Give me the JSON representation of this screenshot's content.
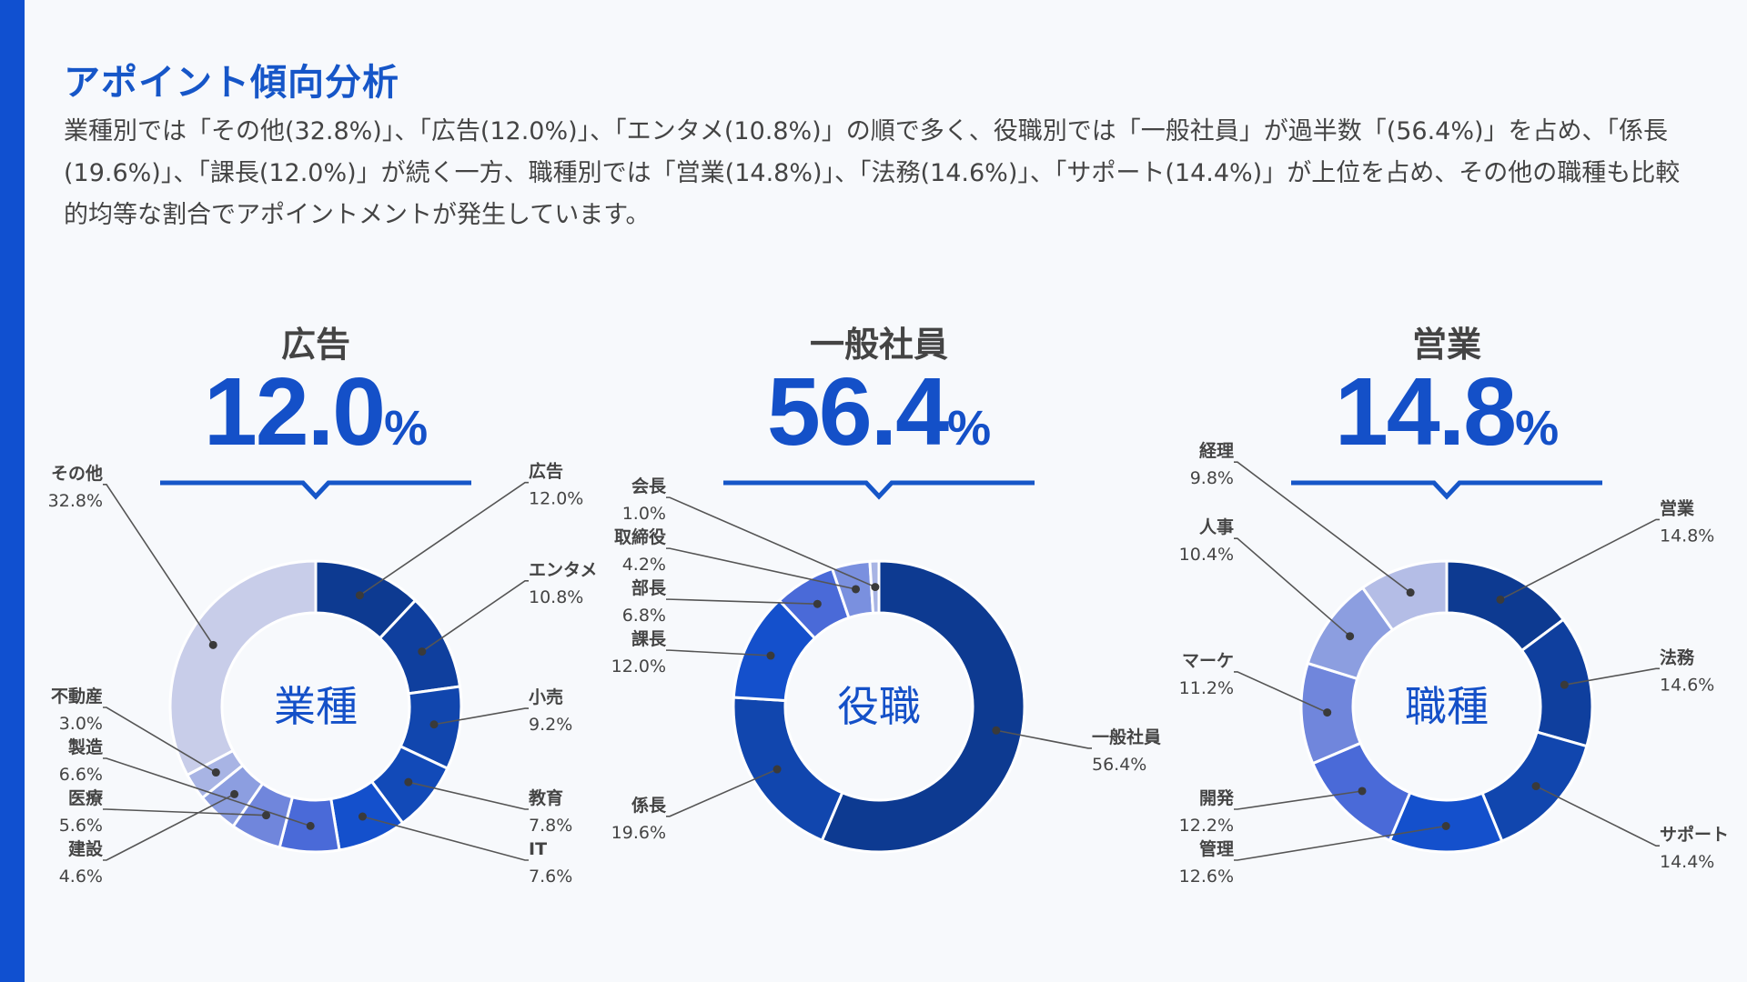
{
  "page": {
    "title": "アポイント傾向分析",
    "description": "業種別では「その他(32.8%)」、「広告(12.0%)」、「エンタメ(10.8%)」の順で多く、役職別では「一般社員」が過半数「(56.4%)」を占め、「係長(19.6%)」、「課長(12.0%)」が続く一方、職種別では「営業(14.8%)」、「法務(14.6%)」、「サポート(14.4%)」が上位を占め、その他の職種も比較的均等な割合でアポイントメントが発生しています。"
  },
  "colors": {
    "accent": "#1050d0",
    "title": "#1656c8",
    "highlight": "#1450c8"
  },
  "highlights": [
    {
      "label": "広告",
      "value": "12.0",
      "unit": "%"
    },
    {
      "label": "一般社員",
      "value": "56.4",
      "unit": "%"
    },
    {
      "label": "営業",
      "value": "14.8",
      "unit": "%"
    }
  ],
  "chart_data": [
    {
      "type": "pie",
      "center_label": "業種",
      "donut": true,
      "slices": [
        {
          "label": "広告",
          "value": 12.0,
          "display": "12.0%",
          "color": "#0d3a91"
        },
        {
          "label": "エンタメ",
          "value": 10.8,
          "display": "10.8%",
          "color": "#0f3f9e"
        },
        {
          "label": "小売",
          "value": 9.2,
          "display": "9.2%",
          "color": "#1146ae"
        },
        {
          "label": "教育",
          "value": 7.8,
          "display": "7.8%",
          "color": "#124ab8"
        },
        {
          "label": "IT",
          "value": 7.6,
          "display": "7.6%",
          "color": "#1450cc"
        },
        {
          "label": "製造",
          "value": 6.6,
          "display": "6.6%",
          "color": "#4a6ad8"
        },
        {
          "label": "医療",
          "value": 5.6,
          "display": "5.6%",
          "color": "#7086dc"
        },
        {
          "label": "建設",
          "value": 4.6,
          "display": "4.6%",
          "color": "#8c9ee0"
        },
        {
          "label": "不動産",
          "value": 3.0,
          "display": "3.0%",
          "color": "#a8b4e4"
        },
        {
          "label": "その他",
          "value": 32.8,
          "display": "32.8%",
          "color": "#c8cde9"
        }
      ]
    },
    {
      "type": "pie",
      "center_label": "役職",
      "donut": true,
      "slices": [
        {
          "label": "一般社員",
          "value": 56.4,
          "display": "56.4%",
          "color": "#0d3a91"
        },
        {
          "label": "係長",
          "value": 19.6,
          "display": "19.6%",
          "color": "#1146ae"
        },
        {
          "label": "課長",
          "value": 12.0,
          "display": "12.0%",
          "color": "#1450cc"
        },
        {
          "label": "部長",
          "value": 6.8,
          "display": "6.8%",
          "color": "#4a6ad8"
        },
        {
          "label": "取締役",
          "value": 4.2,
          "display": "4.2%",
          "color": "#7a90df"
        },
        {
          "label": "会長",
          "value": 1.0,
          "display": "1.0%",
          "color": "#a8b4e4"
        }
      ]
    },
    {
      "type": "pie",
      "center_label": "職種",
      "donut": true,
      "slices": [
        {
          "label": "営業",
          "value": 14.8,
          "display": "14.8%",
          "color": "#0d3a91"
        },
        {
          "label": "法務",
          "value": 14.6,
          "display": "14.6%",
          "color": "#0f3f9e"
        },
        {
          "label": "サポート",
          "value": 14.4,
          "display": "14.4%",
          "color": "#1146ae"
        },
        {
          "label": "管理",
          "value": 12.6,
          "display": "12.6%",
          "color": "#1450cc"
        },
        {
          "label": "開発",
          "value": 12.2,
          "display": "12.2%",
          "color": "#4a6ad8"
        },
        {
          "label": "マーケ",
          "value": 11.2,
          "display": "11.2%",
          "color": "#7086dc"
        },
        {
          "label": "人事",
          "value": 10.4,
          "display": "10.4%",
          "color": "#8c9ee0"
        },
        {
          "label": "経理",
          "value": 9.8,
          "display": "9.8%",
          "color": "#b4bde6"
        }
      ]
    }
  ]
}
